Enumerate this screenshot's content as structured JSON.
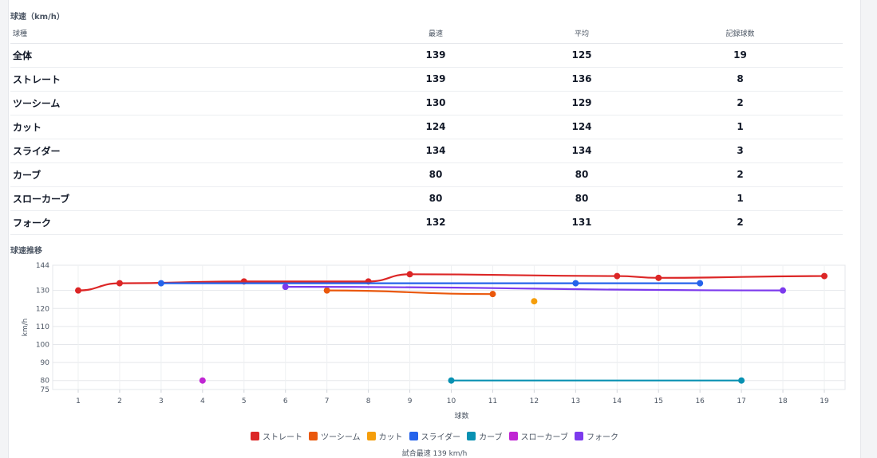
{
  "table_section": {
    "title": "球速（km/h）",
    "headers": [
      "球種",
      "最速",
      "平均",
      "記録球数"
    ],
    "rows": [
      {
        "pitch": "全体",
        "max": "139",
        "avg": "125",
        "count": "19"
      },
      {
        "pitch": "ストレート",
        "max": "139",
        "avg": "136",
        "count": "8"
      },
      {
        "pitch": "ツーシーム",
        "max": "130",
        "avg": "129",
        "count": "2"
      },
      {
        "pitch": "カット",
        "max": "124",
        "avg": "124",
        "count": "1"
      },
      {
        "pitch": "スライダー",
        "max": "134",
        "avg": "134",
        "count": "3"
      },
      {
        "pitch": "カーブ",
        "max": "80",
        "avg": "80",
        "count": "2"
      },
      {
        "pitch": "スローカーブ",
        "max": "80",
        "avg": "80",
        "count": "1"
      },
      {
        "pitch": "フォーク",
        "max": "132",
        "avg": "131",
        "count": "2"
      }
    ]
  },
  "chart_section": {
    "title": "球速推移",
    "footer": "試合最速 139 km/h"
  },
  "chart_data": {
    "type": "line",
    "title": "",
    "xlabel": "球数",
    "ylabel": "km/h",
    "x": [
      1,
      2,
      3,
      4,
      5,
      6,
      7,
      8,
      9,
      10,
      11,
      12,
      13,
      14,
      15,
      16,
      17,
      18,
      19
    ],
    "ylim": [
      75,
      144
    ],
    "yticks": [
      75,
      80,
      90,
      100,
      110,
      120,
      130,
      144
    ],
    "grid": true,
    "legend_placement": "bottom",
    "series": [
      {
        "name": "ストレート",
        "color": "#dc2626",
        "points": [
          [
            1,
            130
          ],
          [
            2,
            134
          ],
          [
            5,
            135
          ],
          [
            8,
            135
          ],
          [
            9,
            139
          ],
          [
            14,
            138
          ],
          [
            15,
            137
          ],
          [
            19,
            138
          ]
        ]
      },
      {
        "name": "ツーシーム",
        "color": "#ea580c",
        "points": [
          [
            7,
            130
          ],
          [
            11,
            128
          ]
        ]
      },
      {
        "name": "カット",
        "color": "#f59e0b",
        "points": [
          [
            12,
            124
          ]
        ]
      },
      {
        "name": "スライダー",
        "color": "#2563eb",
        "points": [
          [
            3,
            134
          ],
          [
            13,
            134
          ],
          [
            16,
            134
          ]
        ]
      },
      {
        "name": "カーブ",
        "color": "#0891b2",
        "points": [
          [
            10,
            80
          ],
          [
            17,
            80
          ]
        ]
      },
      {
        "name": "スローカーブ",
        "color": "#c026d3",
        "points": [
          [
            4,
            80
          ]
        ]
      },
      {
        "name": "フォーク",
        "color": "#7c3aed",
        "points": [
          [
            6,
            132
          ],
          [
            18,
            130
          ]
        ]
      }
    ]
  }
}
